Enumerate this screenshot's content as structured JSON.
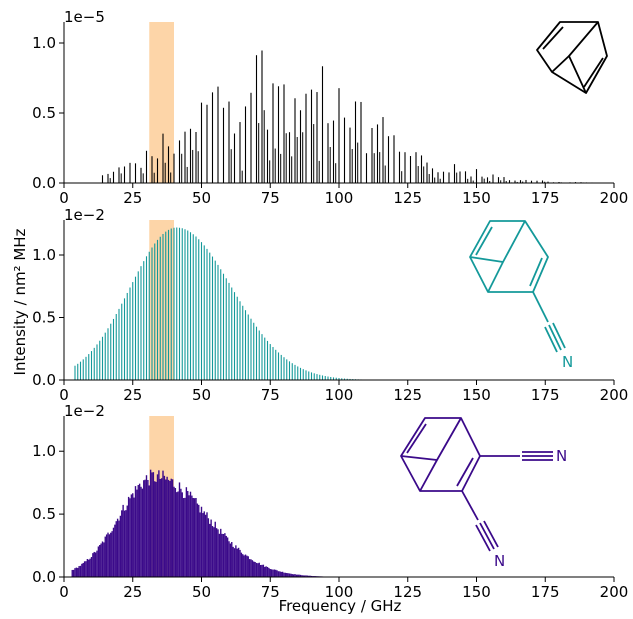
{
  "figure": {
    "ylabel": "Intensity / nm² MHz",
    "xlabel": "Frequency / GHz",
    "highlight_band": {
      "x0": 31,
      "x1": 40,
      "color": "#fdd5a8"
    }
  },
  "chart_data": [
    {
      "type": "bar",
      "name": "bicyclo-octadiene",
      "color": "#000000",
      "xlim": [
        0,
        200
      ],
      "ylim": [
        0,
        1.15
      ],
      "scale_label": "1e−5",
      "xticks": [
        "0",
        "25",
        "50",
        "75",
        "100",
        "125",
        "150",
        "175",
        "200"
      ],
      "yticks": [
        "0.0",
        "0.5",
        "1.0"
      ],
      "ytick_values": [
        0,
        0.5,
        1.0
      ],
      "grid": false,
      "envelope": {
        "peak_x": 72,
        "peak_y": 1.05,
        "sigma_left": 25,
        "sigma_right": 36,
        "onset_x": 14,
        "end_x": 195
      },
      "spacing_ghz": 2.0
    },
    {
      "type": "bar",
      "name": "monocyano",
      "color": "#14999a",
      "xlim": [
        0,
        200
      ],
      "ylim": [
        0,
        1.28
      ],
      "scale_label": "1e−2",
      "xticks": [
        "0",
        "25",
        "50",
        "75",
        "100",
        "125",
        "150",
        "175",
        "200"
      ],
      "yticks": [
        "0.0",
        "0.5",
        "1.0"
      ],
      "ytick_values": [
        0,
        0.5,
        1.0
      ],
      "grid": false,
      "envelope": {
        "peak_x": 41,
        "peak_y": 1.22,
        "sigma_left": 17,
        "sigma_right": 20,
        "onset_x": 4,
        "end_x": 140
      },
      "spacing_ghz": 1.0,
      "n_label": "N"
    },
    {
      "type": "bar",
      "name": "dicyano",
      "color": "#3b0a8a",
      "xlim": [
        0,
        200
      ],
      "ylim": [
        0,
        1.28
      ],
      "scale_label": "1e−2",
      "xticks": [
        "0",
        "25",
        "50",
        "75",
        "100",
        "125",
        "150",
        "175",
        "200"
      ],
      "yticks": [
        "0.0",
        "0.5",
        "1.0"
      ],
      "ytick_values": [
        0,
        0.5,
        1.0
      ],
      "grid": false,
      "envelope": {
        "peak_x": 33,
        "peak_y": 0.86,
        "sigma_left": 13,
        "sigma_right": 19,
        "onset_x": 3,
        "end_x": 130
      },
      "spacing_ghz": 0.5,
      "n_labels": [
        "N",
        "N"
      ]
    }
  ]
}
